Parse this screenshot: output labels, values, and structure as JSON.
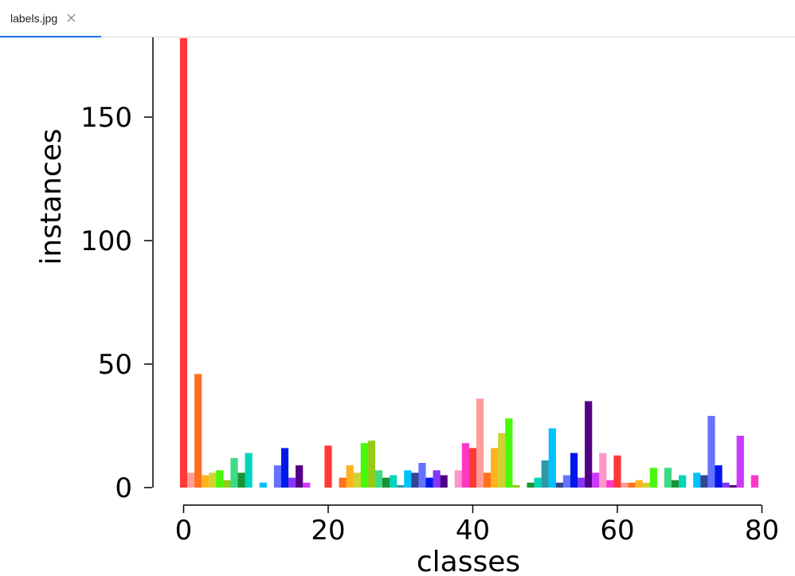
{
  "tab": {
    "label": "labels.jpg",
    "close_icon": "close-icon"
  },
  "chart_data": {
    "type": "bar",
    "xlabel": "classes",
    "ylabel": "instances",
    "xlim": [
      -1,
      80
    ],
    "ylim": [
      0,
      180
    ],
    "xticks": [
      "0",
      "20",
      "40",
      "60",
      "80"
    ],
    "yticks": [
      "0",
      "50",
      "100",
      "150"
    ],
    "grid": false,
    "categories": [
      0,
      1,
      2,
      3,
      4,
      5,
      6,
      7,
      8,
      9,
      10,
      11,
      12,
      13,
      14,
      15,
      16,
      17,
      18,
      19,
      20,
      21,
      22,
      23,
      24,
      25,
      26,
      27,
      28,
      29,
      30,
      31,
      32,
      33,
      34,
      35,
      36,
      37,
      38,
      39,
      40,
      41,
      42,
      43,
      44,
      45,
      46,
      47,
      48,
      49,
      50,
      51,
      52,
      53,
      54,
      55,
      56,
      57,
      58,
      59,
      60,
      61,
      62,
      63,
      64,
      65,
      66,
      67,
      68,
      69,
      70,
      71,
      72,
      73,
      74,
      75,
      76,
      77,
      78,
      79
    ],
    "values": [
      182,
      6,
      46,
      5,
      6,
      7,
      3,
      12,
      6,
      14,
      0,
      2,
      0,
      9,
      16,
      4,
      9,
      2,
      0,
      0,
      17,
      0,
      4,
      9,
      6,
      18,
      19,
      7,
      4,
      5,
      1,
      7,
      6,
      10,
      4,
      7,
      5,
      0,
      7,
      18,
      16,
      36,
      6,
      16,
      22,
      28,
      1,
      0,
      2,
      4,
      11,
      24,
      2,
      5,
      14,
      4,
      35,
      6,
      14,
      3,
      13,
      2,
      2,
      3,
      2,
      8,
      0,
      8,
      3,
      5,
      0,
      6,
      5,
      29,
      9,
      2,
      1,
      21,
      0,
      5
    ],
    "colors": [
      "#ff3838",
      "#ff9d97",
      "#ff701f",
      "#ffb21d",
      "#cfd231",
      "#48f90a",
      "#92cc17",
      "#3ddb86",
      "#1a9334",
      "#00d4bb",
      "#2c99a8",
      "#00c2ff",
      "#344593",
      "#6473ff",
      "#0018ec",
      "#8438ff",
      "#520085",
      "#cb38ff",
      "#ff95c8",
      "#ff37c7",
      "#ff3838",
      "#ff9d97",
      "#ff701f",
      "#ffb21d",
      "#cfd231",
      "#48f90a",
      "#92cc17",
      "#3ddb86",
      "#1a9334",
      "#00d4bb",
      "#2c99a8",
      "#00c2ff",
      "#344593",
      "#6473ff",
      "#0018ec",
      "#8438ff",
      "#520085",
      "#cb38ff",
      "#ff95c8",
      "#ff37c7",
      "#ff3838",
      "#ff9d97",
      "#ff701f",
      "#ffb21d",
      "#cfd231",
      "#48f90a",
      "#92cc17",
      "#3ddb86",
      "#1a9334",
      "#00d4bb",
      "#2c99a8",
      "#00c2ff",
      "#344593",
      "#6473ff",
      "#0018ec",
      "#8438ff",
      "#520085",
      "#cb38ff",
      "#ff95c8",
      "#ff37c7",
      "#ff3838",
      "#ff9d97",
      "#ff701f",
      "#ffb21d",
      "#cfd231",
      "#48f90a",
      "#92cc17",
      "#3ddb86",
      "#1a9334",
      "#00d4bb",
      "#2c99a8",
      "#00c2ff",
      "#344593",
      "#6473ff",
      "#0018ec",
      "#8438ff",
      "#520085",
      "#cb38ff",
      "#ff95c8",
      "#ff37c7"
    ]
  }
}
